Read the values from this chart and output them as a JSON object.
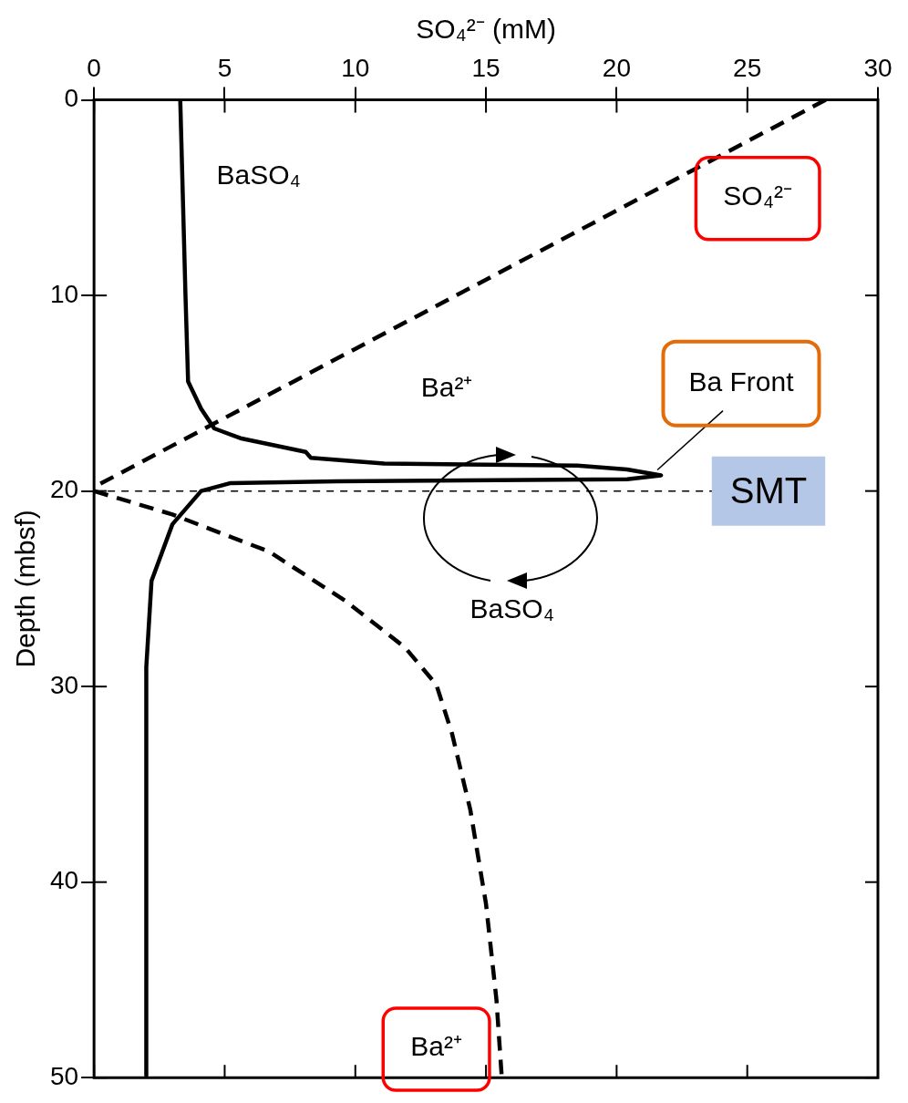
{
  "chart_data": {
    "type": "line",
    "xlabel": "SO₄²⁻ (mM)",
    "ylabel": "Depth (mbsf)",
    "xlim": [
      0,
      30
    ],
    "xticks": [
      0,
      5,
      10,
      15,
      20,
      25,
      30
    ],
    "ylim": [
      50,
      0
    ],
    "yticks": [
      0,
      10,
      20,
      30,
      40,
      50
    ],
    "grid": false,
    "legend": false,
    "marker": "none",
    "series": [
      {
        "name": "BaSO₄",
        "color": "#000000",
        "line_style": "solid",
        "x": [
          3.3,
          3.5,
          3.6,
          4.1,
          4.6,
          5.6,
          8.1,
          8.3,
          11.1,
          18.5,
          20.4,
          21.7,
          20.4,
          9.3,
          5.2,
          4.1,
          3.0,
          2.2,
          2.0,
          2.0
        ],
        "values": [
          0,
          10,
          14.4,
          15.8,
          16.8,
          17.3,
          18.0,
          18.3,
          18.6,
          18.7,
          18.9,
          19.2,
          19.4,
          19.5,
          19.6,
          20.0,
          21.7,
          24.6,
          29.0,
          49.9
        ]
      },
      {
        "name": "SO₄²⁻",
        "color": "#000000",
        "line_style": "dashed",
        "x": [
          28,
          0
        ],
        "values": [
          0,
          19.8
        ]
      },
      {
        "name": "Ba²⁺",
        "color": "#000000",
        "line_style": "dashed",
        "x": [
          0,
          3.0,
          6.7,
          9.6,
          11.9,
          13.1,
          13.7,
          14.4,
          15.0,
          15.4,
          15.6
        ],
        "values": [
          20.0,
          21.2,
          23.1,
          25.6,
          28.0,
          29.9,
          32.4,
          36.3,
          41.1,
          46.0,
          49.9
        ]
      }
    ],
    "ref_lines": [
      {
        "axis": "y",
        "value": 20,
        "label": "SMT",
        "color": "#000000",
        "line_style": "dashed"
      }
    ],
    "annotations": [
      "Ba²⁺",
      "BaSO₄",
      {
        "text": "Ba Front",
        "x": 21.7,
        "y": 19.2
      }
    ]
  }
}
